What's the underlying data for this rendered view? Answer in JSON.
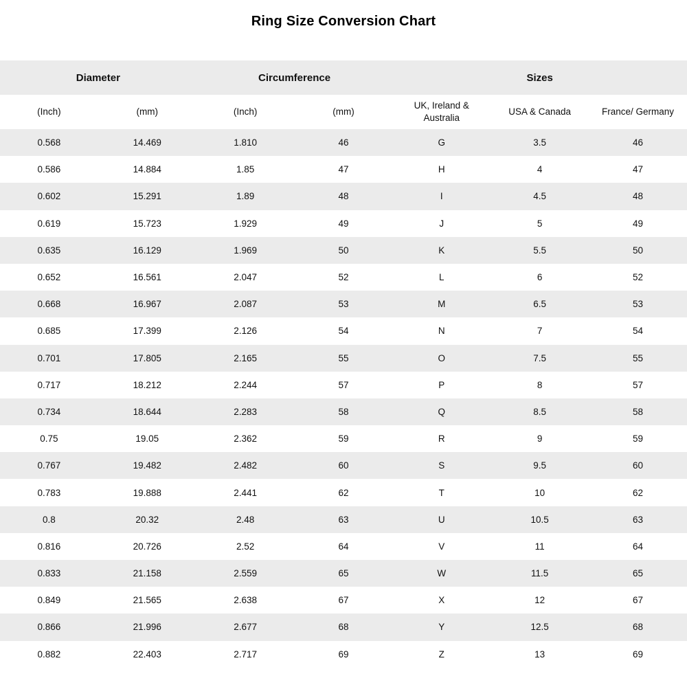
{
  "title": "Ring Size Conversion Chart",
  "colors": {
    "stripe": "#ebebeb",
    "background": "#ffffff",
    "text": "#111111"
  },
  "chart_data": {
    "type": "table",
    "title": "Ring Size Conversion Chart",
    "column_groups": [
      {
        "label": "Diameter",
        "span": 2
      },
      {
        "label": "Circumference",
        "span": 2
      },
      {
        "label": "Sizes",
        "span": 3
      }
    ],
    "subheaders": [
      "(Inch)",
      "(mm)",
      "(Inch)",
      "(mm)",
      "UK, Ireland & Australia",
      "USA & Canada",
      "France/ Germany"
    ],
    "rows": [
      [
        "0.568",
        "14.469",
        "1.810",
        "46",
        "G",
        "3.5",
        "46"
      ],
      [
        "0.586",
        "14.884",
        "1.85",
        "47",
        "H",
        "4",
        "47"
      ],
      [
        "0.602",
        "15.291",
        "1.89",
        "48",
        "I",
        "4.5",
        "48"
      ],
      [
        "0.619",
        "15.723",
        "1.929",
        "49",
        "J",
        "5",
        "49"
      ],
      [
        "0.635",
        "16.129",
        "1.969",
        "50",
        "K",
        "5.5",
        "50"
      ],
      [
        "0.652",
        "16.561",
        "2.047",
        "52",
        "L",
        "6",
        "52"
      ],
      [
        "0.668",
        "16.967",
        "2.087",
        "53",
        "M",
        "6.5",
        "53"
      ],
      [
        "0.685",
        "17.399",
        "2.126",
        "54",
        "N",
        "7",
        "54"
      ],
      [
        "0.701",
        "17.805",
        "2.165",
        "55",
        "O",
        "7.5",
        "55"
      ],
      [
        "0.717",
        "18.212",
        "2.244",
        "57",
        "P",
        "8",
        "57"
      ],
      [
        "0.734",
        "18.644",
        "2.283",
        "58",
        "Q",
        "8.5",
        "58"
      ],
      [
        "0.75",
        "19.05",
        "2.362",
        "59",
        "R",
        "9",
        "59"
      ],
      [
        "0.767",
        "19.482",
        "2.482",
        "60",
        "S",
        "9.5",
        "60"
      ],
      [
        "0.783",
        "19.888",
        "2.441",
        "62",
        "T",
        "10",
        "62"
      ],
      [
        "0.8",
        "20.32",
        "2.48",
        "63",
        "U",
        "10.5",
        "63"
      ],
      [
        "0.816",
        "20.726",
        "2.52",
        "64",
        "V",
        "11",
        "64"
      ],
      [
        "0.833",
        "21.158",
        "2.559",
        "65",
        "W",
        "11.5",
        "65"
      ],
      [
        "0.849",
        "21.565",
        "2.638",
        "67",
        "X",
        "12",
        "67"
      ],
      [
        "0.866",
        "21.996",
        "2.677",
        "68",
        "Y",
        "12.5",
        "68"
      ],
      [
        "0.882",
        "22.403",
        "2.717",
        "69",
        "Z",
        "13",
        "69"
      ]
    ]
  }
}
